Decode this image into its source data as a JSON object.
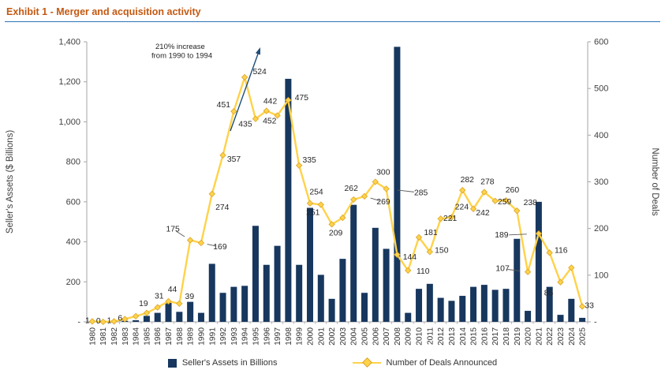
{
  "title": {
    "text": "Exhibit 1 - Merger and acquisition activity",
    "color": "#c45911"
  },
  "chart_data": {
    "type": "combo-bar-line",
    "title": "Exhibit 1 - Merger and acquisition activity",
    "categories": [
      "1980",
      "1981",
      "1982",
      "1983",
      "1984",
      "1985",
      "1986",
      "1987",
      "1988",
      "1989",
      "1990",
      "1991",
      "1992",
      "1993",
      "1994",
      "1995",
      "1996",
      "1997",
      "1998",
      "1999",
      "2000",
      "2001",
      "2002",
      "2003",
      "2004",
      "2005",
      "2006",
      "2007",
      "2008",
      "2009",
      "2010",
      "2011",
      "2012",
      "2013",
      "2014",
      "2015",
      "2016",
      "2017",
      "2018",
      "2019",
      "2020",
      "2021",
      "2022",
      "2023",
      "2024",
      "2025"
    ],
    "series": [
      {
        "name": "Seller's Assets in Billions",
        "type": "bar",
        "axis": "left",
        "color": "#17375e",
        "values": [
          2,
          1,
          4,
          5,
          8,
          30,
          45,
          95,
          50,
          100,
          45,
          290,
          145,
          175,
          180,
          480,
          285,
          380,
          1215,
          285,
          570,
          235,
          115,
          315,
          585,
          145,
          470,
          365,
          1375,
          45,
          165,
          190,
          120,
          105,
          130,
          175,
          185,
          160,
          165,
          415,
          55,
          600,
          175,
          35,
          115,
          20
        ]
      },
      {
        "name": "Number of Deals Announced",
        "type": "line",
        "axis": "right",
        "color": "#ffd24a",
        "marker": "diamond",
        "values": [
          1,
          0,
          1,
          6,
          12,
          19,
          31,
          44,
          39,
          175,
          169,
          274,
          357,
          451,
          524,
          435,
          452,
          442,
          475,
          335,
          254,
          251,
          209,
          223,
          262,
          269,
          300,
          285,
          144,
          110,
          181,
          150,
          221,
          224,
          282,
          242,
          278,
          259,
          260,
          238,
          107,
          189,
          148,
          85,
          116,
          33
        ],
        "labels": {
          "1980": "1",
          "1981": "0",
          "1982": "1",
          "1983": "6",
          "1985": "19",
          "1986": "31",
          "1987": "44",
          "1988": "39",
          "1989": "175",
          "1990": "169",
          "1991": "274",
          "1992": "357",
          "1993": "451",
          "1994": "524",
          "1995": "435",
          "1996": "452",
          "1997": "442",
          "1998": "475",
          "1999": "335",
          "2000": "254",
          "2001": "251",
          "2002": "209",
          "2004": "262",
          "2005": "269",
          "2006": "300",
          "2007": "285",
          "2008": "144",
          "2009": "110",
          "2010": "181",
          "2011": "150",
          "2012": "221",
          "2013": "224",
          "2014": "282",
          "2015": "242",
          "2016": "278",
          "2017": "259",
          "2018": "260",
          "2019": "238",
          "2020": "107",
          "2021": "189",
          "2023": "85",
          "2024": "116",
          "2025": "33"
        }
      }
    ],
    "left_axis": {
      "title": "Seller's Assets ($ Billions)",
      "min": 0,
      "max": 1400,
      "ticks": [
        "-",
        "200",
        "400",
        "600",
        "800",
        "1,000",
        "1,200",
        "1,400"
      ]
    },
    "right_axis": {
      "title": "Number of Deals",
      "min": 0,
      "max": 600,
      "ticks": [
        "-",
        "100",
        "200",
        "300",
        "400",
        "500",
        "600"
      ]
    },
    "annotation": {
      "lines": [
        "210% increase",
        "from 1990 to 1994"
      ]
    },
    "grid": false,
    "legend_position": "bottom"
  },
  "colors": {
    "bar": "#17375e",
    "line": "#ffd24a",
    "line_edge": "#d9a52a",
    "title": "#c45911",
    "title_rule": "#2e75b6",
    "axis": "#a6a6a6",
    "text": "#404040",
    "arrow": "#1f4e79"
  }
}
